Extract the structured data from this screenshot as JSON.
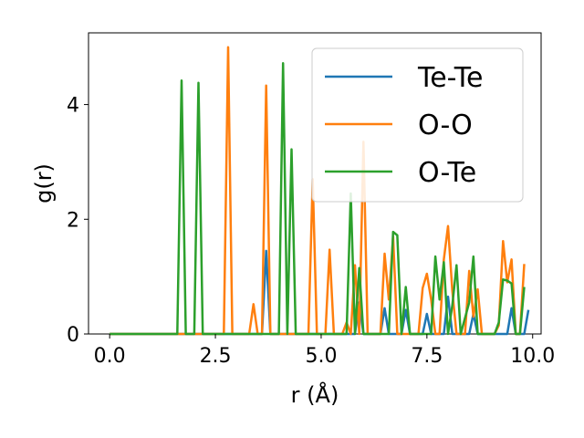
{
  "chart_data": {
    "type": "line",
    "title": "",
    "xlabel": "r (Å)",
    "ylabel": "g(r)",
    "xlim": [
      -0.5,
      10.2
    ],
    "ylim": [
      0,
      5.25
    ],
    "xticks": [
      0.0,
      2.5,
      5.0,
      7.5,
      10.0
    ],
    "xtick_labels": [
      "0.0",
      "2.5",
      "5.0",
      "7.5",
      "10.0"
    ],
    "yticks": [
      0,
      2,
      4
    ],
    "ytick_labels": [
      "0",
      "2",
      "4"
    ],
    "grid": false,
    "legend": {
      "position": "top-right",
      "entries": [
        "Te-Te",
        "O-O",
        "O-Te"
      ]
    },
    "series": [
      {
        "name": "Te-Te",
        "color": "#1f77b4",
        "points": [
          [
            0.0,
            0
          ],
          [
            3.6,
            0
          ],
          [
            3.7,
            1.45
          ],
          [
            3.8,
            0
          ],
          [
            5.8,
            0
          ],
          [
            5.9,
            0.55
          ],
          [
            6.0,
            0
          ],
          [
            6.4,
            0
          ],
          [
            6.5,
            0.45
          ],
          [
            6.6,
            0
          ],
          [
            6.9,
            0
          ],
          [
            7.0,
            0.42
          ],
          [
            7.1,
            0
          ],
          [
            7.4,
            0
          ],
          [
            7.5,
            0.35
          ],
          [
            7.6,
            0
          ],
          [
            7.9,
            0
          ],
          [
            8.0,
            0.65
          ],
          [
            8.1,
            0
          ],
          [
            8.5,
            0
          ],
          [
            8.6,
            0.35
          ],
          [
            8.7,
            0
          ],
          [
            9.4,
            0
          ],
          [
            9.5,
            0.45
          ],
          [
            9.6,
            0
          ],
          [
            9.8,
            0
          ],
          [
            9.9,
            0.42
          ]
        ]
      },
      {
        "name": "O-O",
        "color": "#ff7f0e",
        "points": [
          [
            0.0,
            0
          ],
          [
            2.7,
            0
          ],
          [
            2.8,
            5.0
          ],
          [
            2.9,
            0
          ],
          [
            3.3,
            0
          ],
          [
            3.4,
            0.52
          ],
          [
            3.5,
            0
          ],
          [
            3.6,
            0
          ],
          [
            3.7,
            4.33
          ],
          [
            3.8,
            0
          ],
          [
            4.7,
            0
          ],
          [
            4.8,
            2.7
          ],
          [
            4.9,
            0
          ],
          [
            5.1,
            0
          ],
          [
            5.2,
            1.47
          ],
          [
            5.3,
            0
          ],
          [
            5.5,
            0
          ],
          [
            5.6,
            0.2
          ],
          [
            5.7,
            0
          ],
          [
            5.8,
            1.2
          ],
          [
            5.9,
            0
          ],
          [
            6.0,
            3.35
          ],
          [
            6.1,
            0
          ],
          [
            6.4,
            0
          ],
          [
            6.5,
            1.4
          ],
          [
            6.6,
            0.6
          ],
          [
            6.7,
            1.7
          ],
          [
            6.8,
            0
          ],
          [
            7.3,
            0
          ],
          [
            7.4,
            0.8
          ],
          [
            7.5,
            1.05
          ],
          [
            7.6,
            0.6
          ],
          [
            7.7,
            0
          ],
          [
            7.8,
            0
          ],
          [
            7.9,
            1.3
          ],
          [
            8.0,
            1.88
          ],
          [
            8.1,
            0.75
          ],
          [
            8.2,
            0
          ],
          [
            8.4,
            0
          ],
          [
            8.5,
            1.1
          ],
          [
            8.6,
            0.3
          ],
          [
            8.7,
            0.78
          ],
          [
            8.8,
            0
          ],
          [
            9.1,
            0
          ],
          [
            9.2,
            0.15
          ],
          [
            9.3,
            1.62
          ],
          [
            9.4,
            0.9
          ],
          [
            9.5,
            1.3
          ],
          [
            9.6,
            0
          ],
          [
            9.7,
            0
          ],
          [
            9.8,
            1.22
          ]
        ]
      },
      {
        "name": "O-Te",
        "color": "#2ca02c",
        "points": [
          [
            0.0,
            0
          ],
          [
            1.6,
            0
          ],
          [
            1.7,
            4.42
          ],
          [
            1.8,
            0
          ],
          [
            2.0,
            0
          ],
          [
            2.1,
            4.38
          ],
          [
            2.2,
            0
          ],
          [
            4.0,
            0
          ],
          [
            4.1,
            4.72
          ],
          [
            4.2,
            0
          ],
          [
            4.3,
            3.22
          ],
          [
            4.4,
            0
          ],
          [
            5.6,
            0
          ],
          [
            5.7,
            2.45
          ],
          [
            5.8,
            0
          ],
          [
            5.9,
            1.15
          ],
          [
            6.0,
            0
          ],
          [
            6.6,
            0
          ],
          [
            6.7,
            1.78
          ],
          [
            6.8,
            1.72
          ],
          [
            6.9,
            0
          ],
          [
            7.0,
            0.82
          ],
          [
            7.1,
            0
          ],
          [
            7.6,
            0
          ],
          [
            7.7,
            1.35
          ],
          [
            7.8,
            0.6
          ],
          [
            7.9,
            1.25
          ],
          [
            8.0,
            0
          ],
          [
            8.1,
            0.5
          ],
          [
            8.2,
            1.2
          ],
          [
            8.3,
            0
          ],
          [
            8.5,
            0.55
          ],
          [
            8.6,
            1.35
          ],
          [
            8.7,
            0
          ],
          [
            9.1,
            0
          ],
          [
            9.2,
            0.2
          ],
          [
            9.3,
            0.95
          ],
          [
            9.4,
            0.93
          ],
          [
            9.5,
            0.88
          ],
          [
            9.6,
            0
          ],
          [
            9.7,
            0
          ],
          [
            9.8,
            0.82
          ]
        ]
      }
    ]
  }
}
